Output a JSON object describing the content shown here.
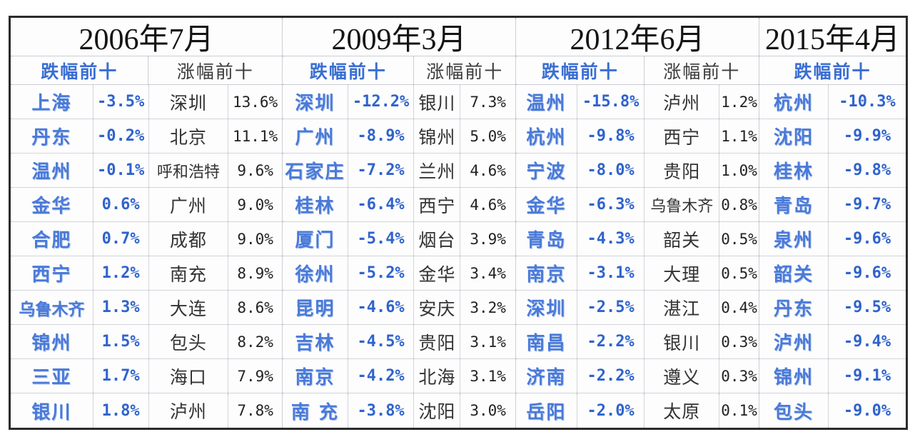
{
  "chart_data": {
    "type": "table",
    "description_labels": {
      "fall_header": "跌幅前十",
      "gain_header": "涨幅前十"
    },
    "periods": [
      {
        "title": "2006年7月",
        "fall_label": "跌幅前十",
        "gain_label": "涨幅前十",
        "fall": [
          {
            "city": "上海",
            "value": "-3.5%"
          },
          {
            "city": "丹东",
            "value": "-0.2%"
          },
          {
            "city": "温州",
            "value": "-0.1%"
          },
          {
            "city": "金华",
            "value": "0.6%"
          },
          {
            "city": "合肥",
            "value": "0.7%"
          },
          {
            "city": "西宁",
            "value": "1.2%"
          },
          {
            "city": "乌鲁木齐",
            "value": "1.3%"
          },
          {
            "city": "锦州",
            "value": "1.5%"
          },
          {
            "city": "三亚",
            "value": "1.7%"
          },
          {
            "city": "银川",
            "value": "1.8%"
          }
        ],
        "gain": [
          {
            "city": "深圳",
            "value": "13.6%"
          },
          {
            "city": "北京",
            "value": "11.1%"
          },
          {
            "city": "呼和浩特",
            "value": "9.6%"
          },
          {
            "city": "广州",
            "value": "9.0%"
          },
          {
            "city": "成都",
            "value": "9.0%"
          },
          {
            "city": "南充",
            "value": "8.9%"
          },
          {
            "city": "大连",
            "value": "8.6%"
          },
          {
            "city": "包头",
            "value": "8.2%"
          },
          {
            "city": "海口",
            "value": "7.9%"
          },
          {
            "city": "泸州",
            "value": "7.8%"
          }
        ]
      },
      {
        "title": "2009年3月",
        "fall_label": "跌幅前十",
        "gain_label": "涨幅前十",
        "fall": [
          {
            "city": "深圳",
            "value": "-12.2%"
          },
          {
            "city": "广州",
            "value": "-8.9%"
          },
          {
            "city": "石家庄",
            "value": "-7.2%"
          },
          {
            "city": "桂林",
            "value": "-6.4%"
          },
          {
            "city": "厦门",
            "value": "-5.4%"
          },
          {
            "city": "徐州",
            "value": "-5.2%"
          },
          {
            "city": "昆明",
            "value": "-4.6%"
          },
          {
            "city": "吉林",
            "value": "-4.5%"
          },
          {
            "city": "南京",
            "value": "-4.2%"
          },
          {
            "city": "南 充",
            "value": "-3.8%"
          }
        ],
        "gain": [
          {
            "city": "银川",
            "value": "7.3%"
          },
          {
            "city": "锦州",
            "value": "5.0%"
          },
          {
            "city": "兰州",
            "value": "4.6%"
          },
          {
            "city": "西宁",
            "value": "4.6%"
          },
          {
            "city": "烟台",
            "value": "3.9%"
          },
          {
            "city": "金华",
            "value": "3.4%"
          },
          {
            "city": "安庆",
            "value": "3.2%"
          },
          {
            "city": "贵阳",
            "value": "3.1%"
          },
          {
            "city": "北海",
            "value": "3.1%"
          },
          {
            "city": "沈阳",
            "value": "3.0%"
          }
        ]
      },
      {
        "title": "2012年6月",
        "fall_label": "跌幅前十",
        "gain_label": "涨幅前十",
        "fall": [
          {
            "city": "温州",
            "value": "-15.8%"
          },
          {
            "city": "杭州",
            "value": "-9.8%"
          },
          {
            "city": "宁波",
            "value": "-8.0%"
          },
          {
            "city": "金华",
            "value": "-6.3%"
          },
          {
            "city": "青岛",
            "value": "-4.3%"
          },
          {
            "city": "南京",
            "value": "-3.1%"
          },
          {
            "city": "深圳",
            "value": "-2.5%"
          },
          {
            "city": "南昌",
            "value": "-2.2%"
          },
          {
            "city": "济南",
            "value": "-2.2%"
          },
          {
            "city": "岳阳",
            "value": "-2.0%"
          }
        ],
        "gain": [
          {
            "city": "泸州",
            "value": "1.2%"
          },
          {
            "city": "西宁",
            "value": "1.1%"
          },
          {
            "city": "贵阳",
            "value": "1.0%"
          },
          {
            "city": "乌鲁木齐",
            "value": "0.8%"
          },
          {
            "city": "韶关",
            "value": "0.5%"
          },
          {
            "city": "大理",
            "value": "0.5%"
          },
          {
            "city": "湛江",
            "value": "0.4%"
          },
          {
            "city": "银川",
            "value": "0.3%"
          },
          {
            "city": "遵义",
            "value": "0.3%"
          },
          {
            "city": "太原",
            "value": "0.1%"
          }
        ]
      },
      {
        "title": "2015年4月",
        "fall_label": "跌幅前十",
        "fall": [
          {
            "city": "杭州",
            "value": "-10.3%"
          },
          {
            "city": "沈阳",
            "value": "-9.9%"
          },
          {
            "city": "桂林",
            "value": "-9.8%"
          },
          {
            "city": "青岛",
            "value": "-9.7%"
          },
          {
            "city": "泉州",
            "value": "-9.6%"
          },
          {
            "city": "韶关",
            "value": "-9.6%"
          },
          {
            "city": "丹东",
            "value": "-9.5%"
          },
          {
            "city": "泸州",
            "value": "-9.4%"
          },
          {
            "city": "锦州",
            "value": "-9.1%"
          },
          {
            "city": "包头",
            "value": "-9.0%"
          }
        ]
      }
    ]
  },
  "colors": {
    "fall_accent": "#3a6ed2",
    "fall_value": "#2f63cc",
    "gain_text": "#3a3a3a",
    "title_text": "#141414",
    "outer_border": "#2b2b2b",
    "dotted_border": "#9aa0ad",
    "background": "#ffffff"
  }
}
